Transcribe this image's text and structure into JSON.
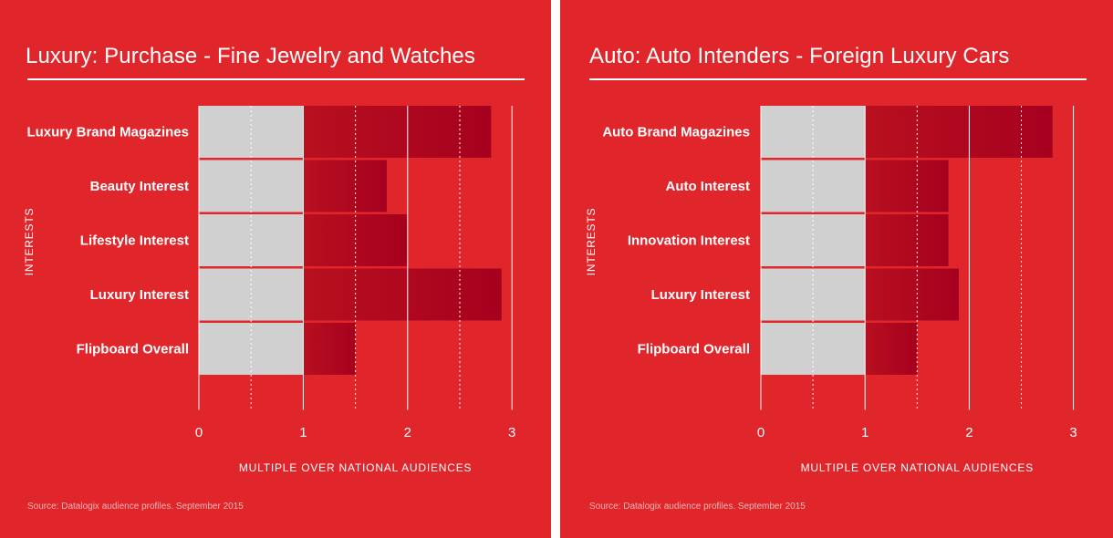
{
  "panels": [
    {
      "title": "Luxury: Purchase - Fine Jewelry and Watches",
      "source": "Source: Datalogix audience profiles. September 2015"
    },
    {
      "title": "Auto: Auto Intenders - Foreign Luxury Cars",
      "source": "Source: Datalogix audience profiles. September 2015"
    }
  ],
  "colors": {
    "background": "#e0262b",
    "baseline_bar": "#d0d0d0",
    "bar_dark": "#a6001f",
    "bar_light": "#b8101f",
    "text": "#ffffff"
  },
  "chart_data": [
    {
      "type": "bar",
      "orientation": "horizontal",
      "title": "Luxury: Purchase - Fine Jewelry and Watches",
      "categories": [
        "Luxury Brand Magazines",
        "Beauty Interest",
        "Lifestyle Interest",
        "Luxury Interest",
        "Flipboard Overall"
      ],
      "values": [
        2.8,
        1.8,
        2.0,
        2.9,
        1.5
      ],
      "baseline": 1,
      "xlabel": "MULTIPLE OVER NATIONAL AUDIENCES",
      "ylabel": "INTERESTS",
      "xlim": [
        0,
        3
      ],
      "xticks": [
        "0",
        "1",
        "2",
        "3"
      ],
      "grid": true
    },
    {
      "type": "bar",
      "orientation": "horizontal",
      "title": "Auto: Auto Intenders - Foreign Luxury Cars",
      "categories": [
        "Auto Brand Magazines",
        "Auto Interest",
        "Innovation Interest",
        "Luxury Interest",
        "Flipboard Overall"
      ],
      "values": [
        2.8,
        1.8,
        1.8,
        1.9,
        1.5
      ],
      "baseline": 1,
      "xlabel": "MULTIPLE OVER NATIONAL AUDIENCES",
      "ylabel": "INTERESTS",
      "xlim": [
        0,
        3
      ],
      "xticks": [
        "0",
        "1",
        "2",
        "3"
      ],
      "grid": true
    }
  ]
}
